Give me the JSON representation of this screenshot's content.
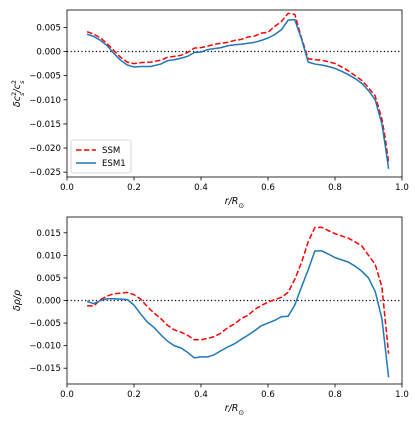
{
  "chart_data": [
    {
      "type": "line",
      "xlabel": "r/R",
      "xlabel_sub": "⊙",
      "ylabel": "δc",
      "ylabel_sup1": "2",
      "ylabel_sub1": "s",
      "ylabel_mid": "/c",
      "ylabel_sup2": "2",
      "ylabel_sub2": "s",
      "xlim": [
        0.0,
        1.0
      ],
      "ylim": [
        -0.026,
        0.0086
      ],
      "x_ticks": [
        0.0,
        0.2,
        0.4,
        0.6,
        0.8,
        1.0
      ],
      "x_tick_labels": [
        "0.0",
        "0.2",
        "0.4",
        "0.6",
        "0.8",
        "1.0"
      ],
      "y_ticks": [
        0.005,
        0.0,
        -0.005,
        -0.01,
        -0.015,
        -0.02,
        -0.025
      ],
      "y_tick_labels": [
        "0.005",
        "0.000",
        "−0.005",
        "−0.010",
        "−0.015",
        "−0.020",
        "−0.025"
      ],
      "reference_line": 0.0,
      "grid": false,
      "legend": "lower-left",
      "series": [
        {
          "name": "SSM",
          "color": "#ff0000",
          "style": "dashed",
          "x": [
            0.06,
            0.08,
            0.1,
            0.12,
            0.14,
            0.16,
            0.18,
            0.2,
            0.22,
            0.25,
            0.28,
            0.3,
            0.32,
            0.34,
            0.36,
            0.38,
            0.4,
            0.42,
            0.44,
            0.46,
            0.48,
            0.5,
            0.52,
            0.54,
            0.56,
            0.58,
            0.6,
            0.62,
            0.64,
            0.66,
            0.68,
            0.7,
            0.72,
            0.74,
            0.76,
            0.78,
            0.8,
            0.82,
            0.84,
            0.86,
            0.88,
            0.9,
            0.92,
            0.94,
            0.95,
            0.96
          ],
          "y": [
            0.0041,
            0.0036,
            0.0028,
            0.0016,
            0.0002,
            -0.0012,
            -0.0022,
            -0.0025,
            -0.0023,
            -0.0022,
            -0.0018,
            -0.0012,
            -0.001,
            -0.0008,
            -0.0002,
            0.0007,
            0.0008,
            0.0011,
            0.0015,
            0.0017,
            0.0019,
            0.0023,
            0.0025,
            0.003,
            0.0032,
            0.0038,
            0.004,
            0.0052,
            0.0062,
            0.0079,
            0.0077,
            0.0028,
            -0.0015,
            -0.0017,
            -0.0018,
            -0.0021,
            -0.0025,
            -0.0032,
            -0.004,
            -0.005,
            -0.006,
            -0.0075,
            -0.0092,
            -0.014,
            -0.018,
            -0.023
          ]
        },
        {
          "name": "ESM1",
          "color": "#1f77b4",
          "style": "solid",
          "x": [
            0.06,
            0.08,
            0.1,
            0.12,
            0.14,
            0.16,
            0.18,
            0.2,
            0.22,
            0.25,
            0.28,
            0.3,
            0.32,
            0.34,
            0.36,
            0.38,
            0.4,
            0.42,
            0.44,
            0.46,
            0.48,
            0.5,
            0.52,
            0.54,
            0.56,
            0.58,
            0.6,
            0.62,
            0.64,
            0.66,
            0.68,
            0.7,
            0.72,
            0.74,
            0.76,
            0.78,
            0.8,
            0.82,
            0.84,
            0.86,
            0.88,
            0.9,
            0.92,
            0.94,
            0.95,
            0.96
          ],
          "y": [
            0.0036,
            0.0031,
            0.0023,
            0.0012,
            -0.0004,
            -0.0018,
            -0.0028,
            -0.0032,
            -0.0031,
            -0.0031,
            -0.0026,
            -0.0019,
            -0.0017,
            -0.0014,
            -0.001,
            -0.0002,
            -0.0001,
            0.0004,
            0.0006,
            0.0008,
            0.0012,
            0.0014,
            0.0015,
            0.0017,
            0.0019,
            0.0023,
            0.0028,
            0.0035,
            0.0045,
            0.0065,
            0.0066,
            0.0026,
            -0.0022,
            -0.0026,
            -0.0028,
            -0.0031,
            -0.0035,
            -0.0041,
            -0.0048,
            -0.0056,
            -0.0066,
            -0.0081,
            -0.01,
            -0.015,
            -0.0195,
            -0.0243
          ]
        }
      ]
    },
    {
      "type": "line",
      "xlabel": "r/R",
      "xlabel_sub": "⊙",
      "ylabel": "δρ/ρ",
      "xlim": [
        0.0,
        1.0
      ],
      "ylim": [
        -0.0185,
        0.0185
      ],
      "x_ticks": [
        0.0,
        0.2,
        0.4,
        0.6,
        0.8,
        1.0
      ],
      "x_tick_labels": [
        "0.0",
        "0.2",
        "0.4",
        "0.6",
        "0.8",
        "1.0"
      ],
      "y_ticks": [
        0.015,
        0.01,
        0.005,
        0.0,
        -0.005,
        -0.01,
        -0.015
      ],
      "y_tick_labels": [
        "0.015",
        "0.010",
        "0.005",
        "0.000",
        "−0.005",
        "−0.010",
        "−0.015"
      ],
      "reference_line": 0.0,
      "grid": false,
      "series": [
        {
          "name": "SSM",
          "color": "#ff0000",
          "style": "dashed",
          "x": [
            0.06,
            0.08,
            0.1,
            0.12,
            0.14,
            0.16,
            0.18,
            0.2,
            0.22,
            0.24,
            0.26,
            0.28,
            0.3,
            0.32,
            0.34,
            0.36,
            0.38,
            0.4,
            0.42,
            0.44,
            0.46,
            0.48,
            0.5,
            0.52,
            0.54,
            0.56,
            0.58,
            0.6,
            0.62,
            0.64,
            0.66,
            0.68,
            0.7,
            0.72,
            0.74,
            0.76,
            0.78,
            0.8,
            0.82,
            0.84,
            0.86,
            0.88,
            0.9,
            0.92,
            0.94,
            0.96
          ],
          "y": [
            -0.0012,
            -0.0012,
            0.0002,
            0.001,
            0.0015,
            0.0016,
            0.0018,
            0.0013,
            0.0003,
            -0.0014,
            -0.0028,
            -0.004,
            -0.0055,
            -0.0065,
            -0.007,
            -0.0077,
            -0.0087,
            -0.0087,
            -0.0084,
            -0.008,
            -0.0072,
            -0.006,
            -0.0052,
            -0.004,
            -0.0033,
            -0.002,
            -0.0011,
            -0.0004,
            0.0002,
            0.0007,
            0.0018,
            0.0047,
            0.0084,
            0.013,
            0.0162,
            0.0162,
            0.0155,
            0.0148,
            0.0143,
            0.0138,
            0.013,
            0.0121,
            0.01,
            0.008,
            0.003,
            -0.0118
          ]
        },
        {
          "name": "ESM1",
          "color": "#1f77b4",
          "style": "solid",
          "x": [
            0.06,
            0.08,
            0.1,
            0.12,
            0.14,
            0.16,
            0.18,
            0.2,
            0.22,
            0.24,
            0.26,
            0.28,
            0.3,
            0.32,
            0.34,
            0.36,
            0.38,
            0.4,
            0.42,
            0.44,
            0.46,
            0.48,
            0.5,
            0.52,
            0.54,
            0.56,
            0.58,
            0.6,
            0.62,
            0.64,
            0.66,
            0.68,
            0.7,
            0.72,
            0.74,
            0.76,
            0.78,
            0.8,
            0.82,
            0.84,
            0.86,
            0.88,
            0.9,
            0.92,
            0.94,
            0.96
          ],
          "y": [
            -0.0002,
            -0.0007,
            0.0,
            0.0004,
            0.0004,
            0.0003,
            0.0002,
            -0.001,
            -0.003,
            -0.0048,
            -0.006,
            -0.0076,
            -0.009,
            -0.01,
            -0.0105,
            -0.0115,
            -0.0127,
            -0.0125,
            -0.0125,
            -0.012,
            -0.0111,
            -0.0103,
            -0.0096,
            -0.0086,
            -0.0077,
            -0.0067,
            -0.0056,
            -0.005,
            -0.0044,
            -0.0036,
            -0.0035,
            -0.001,
            0.003,
            0.0068,
            0.011,
            0.011,
            0.0103,
            0.0095,
            0.009,
            0.0085,
            0.0076,
            0.0065,
            0.005,
            0.002,
            -0.004,
            -0.017
          ]
        }
      ]
    }
  ]
}
